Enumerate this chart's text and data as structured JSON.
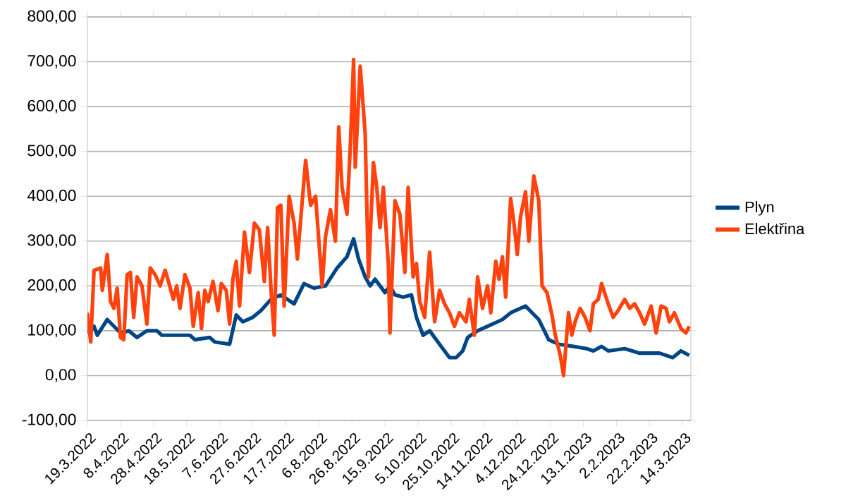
{
  "chart_data": {
    "type": "line",
    "ylim": [
      -100,
      800
    ],
    "yticks": [
      {
        "value": -100,
        "label": "-100,00"
      },
      {
        "value": 0,
        "label": "0,00"
      },
      {
        "value": 100,
        "label": "100,00"
      },
      {
        "value": 200,
        "label": "200,00"
      },
      {
        "value": 300,
        "label": "300,00"
      },
      {
        "value": 400,
        "label": "400,00"
      },
      {
        "value": 500,
        "label": "500,00"
      },
      {
        "value": 600,
        "label": "600,00"
      },
      {
        "value": 700,
        "label": "700,00"
      },
      {
        "value": 800,
        "label": "800,00"
      }
    ],
    "xlim": [
      "2022-03-19",
      "2023-03-19"
    ],
    "xticks": [
      {
        "value": "2022-03-19",
        "label": "19.3.2022"
      },
      {
        "value": "2022-04-08",
        "label": "8.4.2022"
      },
      {
        "value": "2022-04-28",
        "label": "28.4.2022"
      },
      {
        "value": "2022-05-18",
        "label": "18.5.2022"
      },
      {
        "value": "2022-06-07",
        "label": "7.6.2022"
      },
      {
        "value": "2022-06-27",
        "label": "27.6.2022"
      },
      {
        "value": "2022-07-17",
        "label": "17.7.2022"
      },
      {
        "value": "2022-08-06",
        "label": "6.8.2022"
      },
      {
        "value": "2022-08-26",
        "label": "26.8.2022"
      },
      {
        "value": "2022-09-15",
        "label": "15.9.2022"
      },
      {
        "value": "2022-10-05",
        "label": "5.10.2022"
      },
      {
        "value": "2022-10-25",
        "label": "25.10.2022"
      },
      {
        "value": "2022-11-14",
        "label": "14.11.2022"
      },
      {
        "value": "2022-12-04",
        "label": "4.12.2022"
      },
      {
        "value": "2022-12-24",
        "label": "24.12.2022"
      },
      {
        "value": "2023-01-13",
        "label": "13.1.2023"
      },
      {
        "value": "2023-02-02",
        "label": "2.2.2023"
      },
      {
        "value": "2023-02-22",
        "label": "22.2.2023"
      },
      {
        "value": "2023-03-14",
        "label": "14.3.2023"
      }
    ],
    "grid": "y",
    "legend": "right",
    "line_style": "solid",
    "series": [
      {
        "name": "Plyn",
        "color": "#004586",
        "x": [
          "2022-03-19",
          "2022-03-23",
          "2022-03-25",
          "2022-03-31",
          "2022-04-04",
          "2022-04-08",
          "2022-04-13",
          "2022-04-18",
          "2022-04-24",
          "2022-04-30",
          "2022-05-03",
          "2022-05-12",
          "2022-05-20",
          "2022-05-23",
          "2022-06-01",
          "2022-06-04",
          "2022-06-13",
          "2022-06-17",
          "2022-06-21",
          "2022-06-27",
          "2022-07-02",
          "2022-07-08",
          "2022-07-14",
          "2022-07-22",
          "2022-07-28",
          "2022-08-03",
          "2022-08-10",
          "2022-08-17",
          "2022-08-23",
          "2022-08-27",
          "2022-08-30",
          "2022-09-03",
          "2022-09-06",
          "2022-09-09",
          "2022-09-15",
          "2022-09-18",
          "2022-09-21",
          "2022-09-26",
          "2022-10-01",
          "2022-10-04",
          "2022-10-08",
          "2022-10-12",
          "2022-10-18",
          "2022-10-24",
          "2022-10-28",
          "2022-11-01",
          "2022-11-04",
          "2022-11-10",
          "2022-11-16",
          "2022-11-25",
          "2022-11-30",
          "2022-12-09",
          "2022-12-13",
          "2022-12-17",
          "2022-12-23",
          "2022-12-29",
          "2023-01-07",
          "2023-01-15",
          "2023-01-19",
          "2023-01-24",
          "2023-01-28",
          "2023-02-07",
          "2023-02-16",
          "2023-02-28",
          "2023-03-08",
          "2023-03-13",
          "2023-03-18"
        ],
        "values": [
          95,
          110,
          90,
          125,
          110,
          95,
          100,
          85,
          100,
          100,
          90,
          90,
          90,
          80,
          85,
          75,
          70,
          135,
          120,
          130,
          145,
          170,
          180,
          160,
          205,
          195,
          200,
          240,
          265,
          305,
          260,
          220,
          200,
          215,
          185,
          200,
          180,
          175,
          180,
          130,
          90,
          100,
          70,
          40,
          40,
          55,
          85,
          100,
          110,
          125,
          140,
          155,
          140,
          125,
          80,
          70,
          65,
          60,
          55,
          65,
          55,
          60,
          50,
          50,
          40,
          55,
          45
        ]
      },
      {
        "name": "Elektřina",
        "color": "#ff420e",
        "x": [
          "2022-03-19",
          "2022-03-21",
          "2022-03-23",
          "2022-03-27",
          "2022-03-28",
          "2022-03-31",
          "2022-04-02",
          "2022-04-04",
          "2022-04-06",
          "2022-04-08",
          "2022-04-10",
          "2022-04-12",
          "2022-04-14",
          "2022-04-16",
          "2022-04-18",
          "2022-04-21",
          "2022-04-24",
          "2022-04-26",
          "2022-04-29",
          "2022-05-02",
          "2022-05-05",
          "2022-05-07",
          "2022-05-10",
          "2022-05-12",
          "2022-05-14",
          "2022-05-17",
          "2022-05-20",
          "2022-05-22",
          "2022-05-25",
          "2022-05-27",
          "2022-05-29",
          "2022-05-31",
          "2022-06-03",
          "2022-06-06",
          "2022-06-08",
          "2022-06-11",
          "2022-06-13",
          "2022-06-15",
          "2022-06-17",
          "2022-06-19",
          "2022-06-22",
          "2022-06-25",
          "2022-06-28",
          "2022-07-01",
          "2022-07-04",
          "2022-07-06",
          "2022-07-08",
          "2022-07-10",
          "2022-07-12",
          "2022-07-14",
          "2022-07-16",
          "2022-07-19",
          "2022-07-22",
          "2022-07-24",
          "2022-07-29",
          "2022-08-01",
          "2022-08-04",
          "2022-08-08",
          "2022-08-10",
          "2022-08-13",
          "2022-08-16",
          "2022-08-18",
          "2022-08-20",
          "2022-08-23",
          "2022-08-25",
          "2022-08-27",
          "2022-08-28",
          "2022-08-31",
          "2022-09-03",
          "2022-09-05",
          "2022-09-08",
          "2022-09-10",
          "2022-09-12",
          "2022-09-14",
          "2022-09-17",
          "2022-09-18",
          "2022-09-21",
          "2022-09-24",
          "2022-09-27",
          "2022-09-29",
          "2022-10-02",
          "2022-10-04",
          "2022-10-06",
          "2022-10-09",
          "2022-10-12",
          "2022-10-15",
          "2022-10-18",
          "2022-10-21",
          "2022-10-24",
          "2022-10-27",
          "2022-10-30",
          "2022-11-03",
          "2022-11-05",
          "2022-11-08",
          "2022-11-10",
          "2022-11-13",
          "2022-11-16",
          "2022-11-18",
          "2022-11-21",
          "2022-11-23",
          "2022-11-25",
          "2022-11-27",
          "2022-11-30",
          "2022-12-02",
          "2022-12-04",
          "2022-12-06",
          "2022-12-09",
          "2022-12-11",
          "2022-12-14",
          "2022-12-17",
          "2022-12-19",
          "2022-12-22",
          "2022-12-25",
          "2022-12-27",
          "2022-12-30",
          "2023-01-01",
          "2023-01-04",
          "2023-01-06",
          "2023-01-08",
          "2023-01-11",
          "2023-01-14",
          "2023-01-17",
          "2023-01-19",
          "2023-01-22",
          "2023-01-24",
          "2023-01-28",
          "2023-01-31",
          "2023-02-03",
          "2023-02-07",
          "2023-02-10",
          "2023-02-13",
          "2023-02-16",
          "2023-02-19",
          "2023-02-23",
          "2023-02-26",
          "2023-03-01",
          "2023-03-04",
          "2023-03-06",
          "2023-03-09",
          "2023-03-13",
          "2023-03-16",
          "2023-03-18"
        ],
        "values": [
          140,
          75,
          235,
          240,
          190,
          270,
          165,
          150,
          195,
          85,
          80,
          225,
          230,
          130,
          220,
          200,
          115,
          240,
          225,
          200,
          235,
          210,
          170,
          200,
          150,
          225,
          195,
          110,
          185,
          105,
          190,
          165,
          210,
          145,
          205,
          190,
          115,
          215,
          255,
          155,
          320,
          230,
          340,
          325,
          210,
          330,
          195,
          90,
          375,
          380,
          155,
          400,
          340,
          260,
          480,
          380,
          400,
          200,
          310,
          370,
          300,
          555,
          420,
          360,
          510,
          705,
          465,
          690,
          540,
          220,
          475,
          420,
          330,
          420,
          250,
          95,
          390,
          360,
          230,
          420,
          220,
          250,
          165,
          130,
          275,
          120,
          190,
          160,
          140,
          110,
          140,
          120,
          170,
          90,
          220,
          150,
          200,
          140,
          255,
          215,
          265,
          175,
          395,
          340,
          270,
          355,
          410,
          300,
          445,
          390,
          200,
          185,
          135,
          90,
          45,
          0,
          140,
          90,
          120,
          150,
          130,
          100,
          160,
          170,
          205,
          160,
          130,
          145,
          170,
          150,
          160,
          140,
          115,
          155,
          95,
          155,
          150,
          120,
          140,
          105,
          95,
          110
        ]
      }
    ]
  }
}
